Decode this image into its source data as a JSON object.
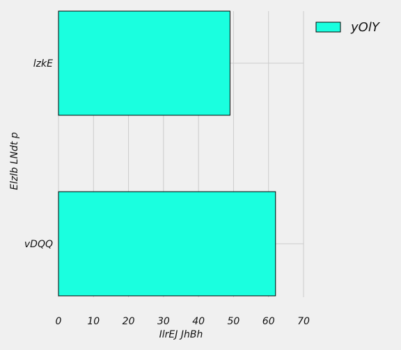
{
  "chart_data": {
    "type": "bar",
    "orientation": "horizontal",
    "categories": [
      "lzkE",
      "vDQQ"
    ],
    "series": [
      {
        "name": "yOlY",
        "values": [
          49,
          62
        ],
        "color": "#1affdf"
      }
    ],
    "title": "",
    "xlabel": "IlrEJ  JhBh",
    "ylabel": "Elzlb LNdt p",
    "xlim": [
      0,
      70
    ],
    "xticks": [
      0,
      10,
      20,
      30,
      40,
      50,
      60,
      70
    ],
    "grid": true,
    "legend_position": "top-right",
    "colors": {
      "background": "#f0f0f0",
      "grid": "#cbcbcb",
      "bar_edge": "#000000",
      "text": "#111111"
    }
  }
}
